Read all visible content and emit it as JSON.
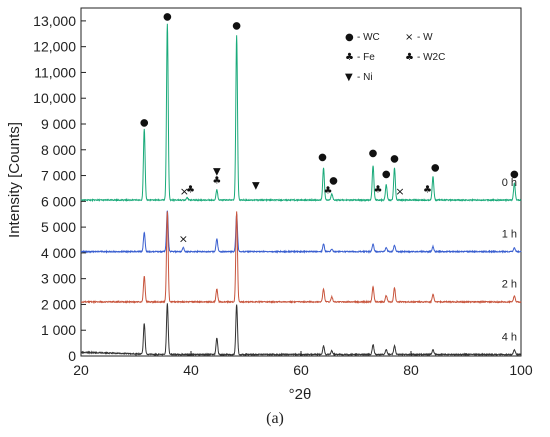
{
  "chart_data": {
    "type": "line",
    "xlabel": "°2θ",
    "ylabel": "Intensity [Counts]",
    "xlim": [
      20,
      100
    ],
    "ylim": [
      0,
      13500
    ],
    "x_ticks": [
      20,
      40,
      60,
      80,
      100
    ],
    "y_ticks": [
      {
        "value": 0,
        "label": "0"
      },
      {
        "value": 1000,
        "label": "1 000"
      },
      {
        "value": 2000,
        "label": "2 000"
      },
      {
        "value": 3000,
        "label": "3 000"
      },
      {
        "value": 4000,
        "label": "4 000"
      },
      {
        "value": 5000,
        "label": "5 000"
      },
      {
        "value": 6000,
        "label": "6 000"
      },
      {
        "value": 7000,
        "label": "7 000"
      },
      {
        "value": 8000,
        "label": "8 000"
      },
      {
        "value": 9000,
        "label": "9 000"
      },
      {
        "value": 10000,
        "label": "10,000"
      },
      {
        "value": 11000,
        "label": "11,000"
      },
      {
        "value": 12000,
        "label": "12,000"
      },
      {
        "value": 13000,
        "label": "13,000"
      }
    ],
    "grid": false,
    "legend_position": "top-right",
    "series": [
      {
        "name": "0 h",
        "color": "#1aaa7a",
        "baseline": 6050,
        "peaks": [
          [
            31.5,
            8800
          ],
          [
            35.7,
            12900
          ],
          [
            39.3,
            6150
          ],
          [
            44.7,
            6450
          ],
          [
            48.3,
            12450
          ],
          [
            64.1,
            7300
          ],
          [
            65.6,
            6300
          ],
          [
            73.1,
            7400
          ],
          [
            75.5,
            6650
          ],
          [
            77.0,
            7300
          ],
          [
            84.0,
            6950
          ],
          [
            98.8,
            6700
          ]
        ]
      },
      {
        "name": "1 h",
        "color": "#3a5fd0",
        "baseline": 4050,
        "peaks": [
          [
            31.5,
            4800
          ],
          [
            35.7,
            5650
          ],
          [
            38.6,
            4200
          ],
          [
            44.7,
            4550
          ],
          [
            48.3,
            5500
          ],
          [
            64.1,
            4350
          ],
          [
            65.6,
            4150
          ],
          [
            73.1,
            4350
          ],
          [
            75.5,
            4200
          ],
          [
            77.0,
            4300
          ],
          [
            84.0,
            4250
          ],
          [
            98.8,
            4200
          ]
        ]
      },
      {
        "name": "2 h",
        "color": "#c8553d",
        "baseline": 2100,
        "peaks": [
          [
            31.5,
            3100
          ],
          [
            35.7,
            5600
          ],
          [
            44.7,
            2600
          ],
          [
            48.3,
            5600
          ],
          [
            64.1,
            2600
          ],
          [
            65.6,
            2300
          ],
          [
            73.1,
            2700
          ],
          [
            75.5,
            2350
          ],
          [
            77.0,
            2650
          ],
          [
            84.0,
            2400
          ],
          [
            98.8,
            2350
          ]
        ]
      },
      {
        "name": "4 h",
        "color": "#333333",
        "baseline": 60,
        "peaks": [
          [
            31.5,
            1250
          ],
          [
            35.7,
            2050
          ],
          [
            44.7,
            700
          ],
          [
            48.3,
            2000
          ],
          [
            64.1,
            400
          ],
          [
            65.6,
            200
          ],
          [
            73.1,
            450
          ],
          [
            75.5,
            250
          ],
          [
            77.0,
            400
          ],
          [
            84.0,
            250
          ],
          [
            98.8,
            250
          ]
        ]
      }
    ],
    "annotations": [
      {
        "marker": "●",
        "x": 31.5,
        "y": 8950
      },
      {
        "marker": "●",
        "x": 35.7,
        "y": 13050
      },
      {
        "marker": "×",
        "x": 38.8,
        "y": 6250
      },
      {
        "marker": "♣",
        "x": 39.9,
        "y": 6350
      },
      {
        "marker": "▼",
        "x": 44.7,
        "y": 7050
      },
      {
        "marker": "♣",
        "x": 44.7,
        "y": 6700
      },
      {
        "marker": "●",
        "x": 48.3,
        "y": 12700
      },
      {
        "marker": "▼",
        "x": 51.8,
        "y": 6500
      },
      {
        "marker": "●",
        "x": 63.9,
        "y": 7600
      },
      {
        "marker": "♣",
        "x": 64.9,
        "y": 6300
      },
      {
        "marker": "●",
        "x": 65.9,
        "y": 6700
      },
      {
        "marker": "●",
        "x": 73.1,
        "y": 7750
      },
      {
        "marker": "♣",
        "x": 74.0,
        "y": 6350
      },
      {
        "marker": "●",
        "x": 75.5,
        "y": 6950
      },
      {
        "marker": "●",
        "x": 77.0,
        "y": 7550
      },
      {
        "marker": "×",
        "x": 78.0,
        "y": 6250
      },
      {
        "marker": "♣",
        "x": 83.0,
        "y": 6350
      },
      {
        "marker": "●",
        "x": 84.4,
        "y": 7200
      },
      {
        "marker": "●",
        "x": 98.8,
        "y": 6950
      },
      {
        "marker": "×",
        "x": 38.6,
        "y": 4400
      }
    ],
    "legend": [
      {
        "marker": "●",
        "label": "- WC"
      },
      {
        "marker": "×",
        "label": "- W"
      },
      {
        "marker": "♣",
        "label": "- Fe"
      },
      {
        "marker": "♣",
        "label": "- W2C"
      },
      {
        "marker": "▼",
        "label": "- Ni"
      }
    ]
  },
  "caption": "(a)"
}
